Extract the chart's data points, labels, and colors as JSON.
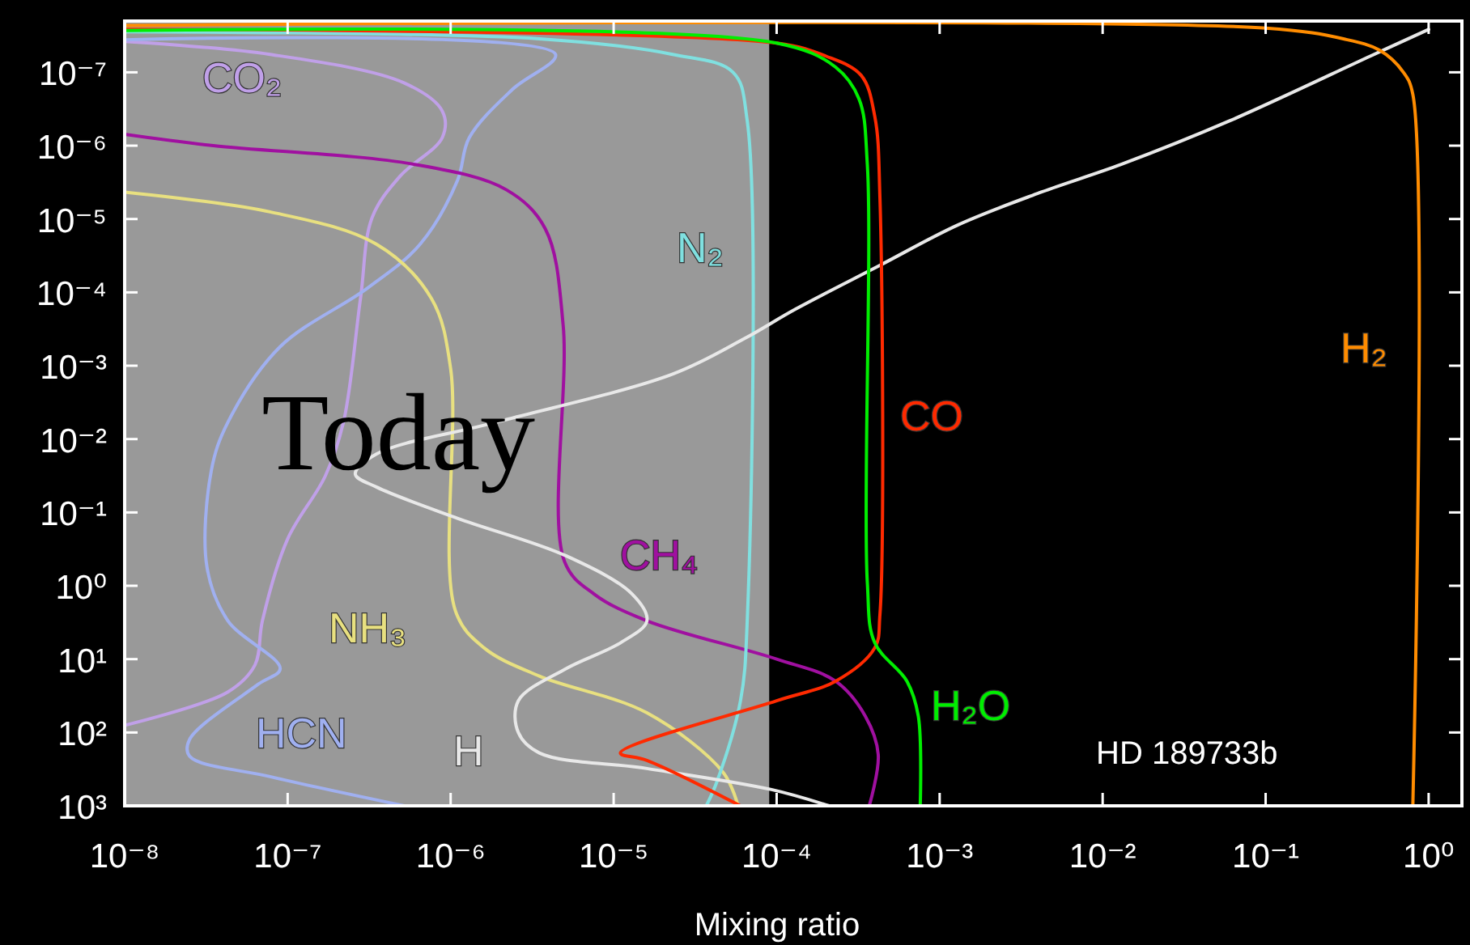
{
  "chart_data": {
    "type": "line",
    "xlabel": "Mixing ratio",
    "log": "xy",
    "xlim": [
      1e-08,
      1.6
    ],
    "ylim": [
      1000,
      2e-08
    ],
    "xticks": [
      {
        "value": 1e-08,
        "label": "10⁻⁸"
      },
      {
        "value": 1e-07,
        "label": "10⁻⁷"
      },
      {
        "value": 1e-06,
        "label": "10⁻⁶"
      },
      {
        "value": 1e-05,
        "label": "10⁻⁵"
      },
      {
        "value": 0.0001,
        "label": "10⁻⁴"
      },
      {
        "value": 0.001,
        "label": "10⁻³"
      },
      {
        "value": 0.01,
        "label": "10⁻²"
      },
      {
        "value": 0.1,
        "label": "10⁻¹"
      },
      {
        "value": 1,
        "label": "10⁰"
      }
    ],
    "yticks": [
      {
        "value": 1e-07,
        "label": "10⁻⁷"
      },
      {
        "value": 1e-06,
        "label": "10⁻⁶"
      },
      {
        "value": 1e-05,
        "label": "10⁻⁵"
      },
      {
        "value": 0.0001,
        "label": "10⁻⁴"
      },
      {
        "value": 0.001,
        "label": "10⁻³"
      },
      {
        "value": 0.01,
        "label": "10⁻²"
      },
      {
        "value": 0.1,
        "label": "10⁻¹"
      },
      {
        "value": 1,
        "label": "10⁰"
      },
      {
        "value": 10,
        "label": "10¹"
      },
      {
        "value": 100,
        "label": "10²"
      },
      {
        "value": 1000,
        "label": "10³"
      }
    ],
    "bands": [
      {
        "axis": "x",
        "from": 1e-08,
        "to": 9e-05,
        "label": "Today",
        "color": "#999999"
      }
    ],
    "annotations": [
      "HD 189733b"
    ],
    "series": [
      {
        "name": "CO₂",
        "color": "#c0a0e8",
        "x": [
          1e-08,
          7.8e-08,
          5.2e-07,
          8.9e-07,
          8.9e-07,
          4.9e-07,
          3.3e-07,
          2.8e-07,
          2.2e-07,
          1.7e-07,
          1e-07,
          7e-08,
          6.3e-08,
          4.3e-08,
          1e-08
        ],
        "values": [
          3.8e-08,
          5.7e-08,
          1.4e-07,
          3.4e-07,
          7.7e-07,
          2.6e-06,
          9.5e-06,
          0.00012,
          0.0059,
          0.032,
          0.23,
          3,
          12,
          28,
          80
        ]
      },
      {
        "name": "HCN",
        "color": "#a0b0f0",
        "x": [
          1e-08,
          4.4e-06,
          2.4e-06,
          1.3e-06,
          1.1e-06,
          6.5e-07,
          3.1e-07,
          9e-08,
          4.3e-08,
          3.4e-08,
          3.2e-08,
          4.3e-08,
          9e-08,
          6.6e-08,
          2.5e-08,
          2.5e-08,
          7.8e-08,
          5.2e-07
        ],
        "values": [
          3.6e-08,
          5.7e-08,
          1.7e-07,
          7.8e-07,
          3e-06,
          2.2e-05,
          8.7e-05,
          0.00055,
          0.0059,
          0.027,
          0.56,
          3,
          13.5,
          22,
          125,
          210,
          400,
          1000
        ]
      },
      {
        "name": "CH₄",
        "color": "#a010a0",
        "x": [
          1e-08,
          3.5e-08,
          6e-07,
          2.2e-06,
          3.8e-06,
          4.9e-06,
          5e-06,
          7.6e-06,
          1.6e-05,
          0.0001,
          0.00023,
          0.00035,
          0.00042,
          0.00037
        ],
        "values": [
          7e-07,
          1e-06,
          1.8e-06,
          4e-06,
          1.35e-05,
          0.00028,
          0.47,
          1.3,
          3,
          10,
          20,
          60,
          200,
          1000
        ]
      },
      {
        "name": "NH₃",
        "color": "#e8e080",
        "x": [
          1e-08,
          7.8e-08,
          3.5e-07,
          7.6e-07,
          1e-06,
          1.07e-06,
          1.6e-06,
          3.5e-06,
          1.6e-05,
          4.7e-05,
          5.8e-05
        ],
        "values": [
          4.3e-06,
          8e-06,
          2.2e-05,
          0.00012,
          0.0011,
          2.2,
          7,
          17,
          54,
          350,
          1000
        ]
      },
      {
        "name": "N₂",
        "color": "#80e0e0",
        "x": [
          1e-08,
          3.5e-06,
          2.3e-05,
          5.4e-05,
          6.6e-05,
          6.6e-05,
          6e-05,
          4.3e-05,
          3.7e-05
        ],
        "values": [
          2.8e-08,
          3.5e-08,
          5.7e-08,
          1e-07,
          4.6e-07,
          3,
          37,
          470,
          1000
        ]
      },
      {
        "name": "H",
        "color": "#e8e8e8",
        "x": [
          1,
          0.44,
          0.06,
          0.013,
          0.0042,
          0.0013,
          0.00042,
          0.00013,
          6.3e-05,
          2.3e-05,
          1.9e-06,
          3.5e-07,
          2.6e-07,
          3.5e-07,
          1.1e-06,
          5.1e-06,
          1.3e-05,
          1.6e-05,
          1.1e-05,
          5.1e-06,
          2.6e-06,
          2.6e-06,
          3.5e-06,
          1.6e-05,
          9.3e-05,
          0.00021
        ],
        "values": [
          2.6e-08,
          6e-08,
          4.6e-07,
          1.8e-06,
          4.3e-06,
          1.2e-05,
          4.4e-05,
          0.00017,
          0.00043,
          0.0013,
          0.0059,
          0.016,
          0.03,
          0.045,
          0.12,
          0.39,
          1.3,
          3,
          6,
          13.5,
          37,
          100,
          190,
          310,
          600,
          1000
        ]
      },
      {
        "name": "CO",
        "color": "#ff2a00",
        "x": [
          1e-08,
          0.0001,
          0.0002,
          0.00033,
          0.0004,
          0.00043,
          0.00043,
          0.0004,
          0.00023,
          0.0001,
          1.1e-05,
          1.6e-05,
          6e-05
        ],
        "values": [
          2.6e-08,
          4e-08,
          6e-08,
          1.1e-07,
          4e-07,
          5e-06,
          2.5,
          7,
          20,
          37,
          190,
          240,
          1000
        ]
      },
      {
        "name": "H₂O",
        "color": "#00ee00",
        "x": [
          1e-08,
          0.0001,
          0.00023,
          0.00032,
          0.00036,
          0.00036,
          0.0004,
          0.00063,
          0.00074,
          0.00076
        ],
        "values": [
          2.7e-08,
          4e-08,
          8.5e-08,
          2.3e-07,
          1.8e-06,
          0.9,
          6,
          20,
          60,
          1000
        ]
      },
      {
        "name": "H₂",
        "color": "#ff8c00",
        "x": [
          1e-08,
          0.1,
          0.3,
          0.5,
          0.7,
          0.8,
          0.8
        ],
        "values": [
          2.3e-08,
          2.5e-08,
          3.5e-08,
          5e-08,
          1e-07,
          2e-07,
          1000
        ]
      }
    ]
  }
}
